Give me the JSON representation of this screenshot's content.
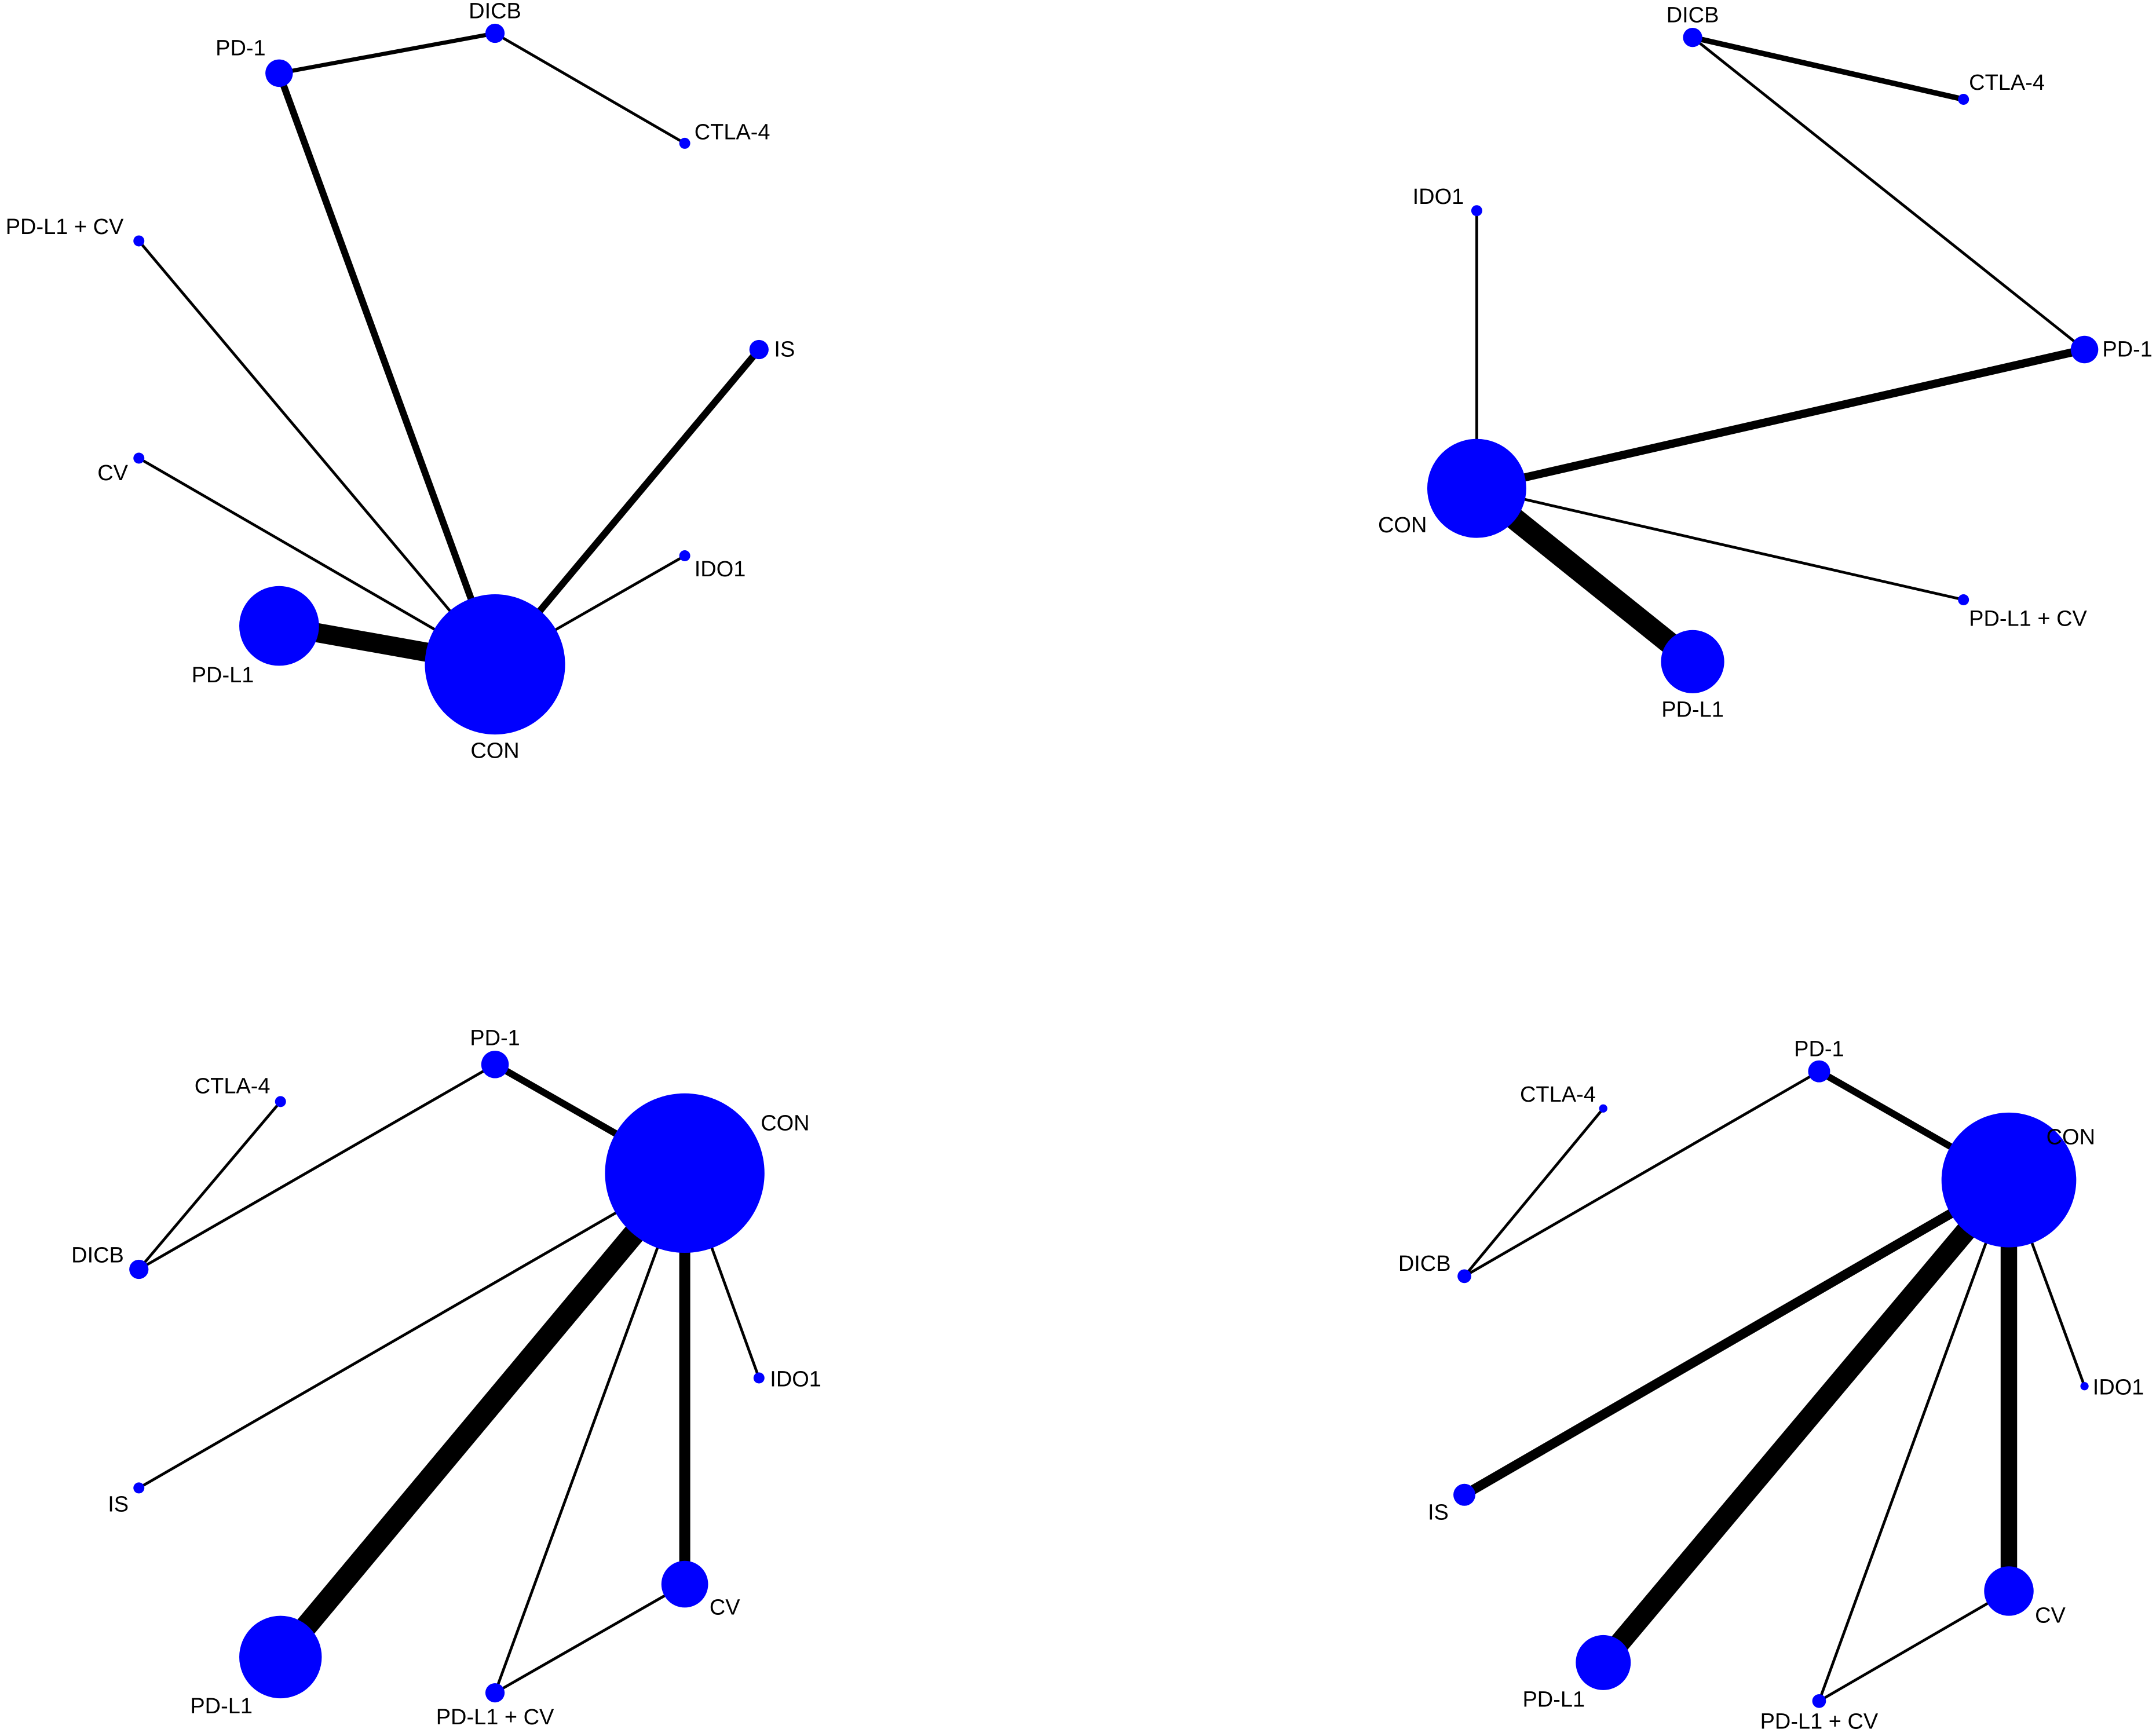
{
  "node_color": "#0000FF",
  "edge_color": "#000000",
  "networks": [
    {
      "nodes": [
        "PD-1",
        "DICB",
        "CTLA-4",
        "PD-L1 + CV",
        "IS",
        "CV",
        "IDO1",
        "PD-L1",
        "CON"
      ],
      "edges": [
        [
          "PD-1",
          "DICB"
        ],
        [
          "DICB",
          "CTLA-4"
        ],
        [
          "PD-1",
          "CON"
        ],
        [
          "PD-L1 + CV",
          "CON"
        ],
        [
          "IS",
          "CON"
        ],
        [
          "CV",
          "CON"
        ],
        [
          "IDO1",
          "CON"
        ],
        [
          "PD-L1",
          "CON"
        ]
      ]
    },
    {
      "nodes": [
        "DICB",
        "CTLA-4",
        "IDO1",
        "PD-1",
        "CON",
        "PD-L1 + CV",
        "PD-L1"
      ],
      "edges": [
        [
          "DICB",
          "CTLA-4"
        ],
        [
          "DICB",
          "PD-1"
        ],
        [
          "IDO1",
          "CON"
        ],
        [
          "PD-1",
          "CON"
        ],
        [
          "CON",
          "PD-L1 + CV"
        ],
        [
          "CON",
          "PD-L1"
        ]
      ]
    },
    {
      "nodes": [
        "PD-1",
        "CTLA-4",
        "CON",
        "DICB",
        "IDO1",
        "IS",
        "CV",
        "PD-L1",
        "PD-L1 + CV"
      ],
      "edges": [
        [
          "PD-1",
          "CON"
        ],
        [
          "CTLA-4",
          "DICB"
        ],
        [
          "DICB",
          "PD-1"
        ],
        [
          "CON",
          "IDO1"
        ],
        [
          "CON",
          "IS"
        ],
        [
          "CON",
          "CV"
        ],
        [
          "CON",
          "PD-L1"
        ],
        [
          "CON",
          "PD-L1 + CV"
        ],
        [
          "CV",
          "PD-L1 + CV"
        ]
      ]
    },
    {
      "nodes": [
        "PD-1",
        "CTLA-4",
        "CON",
        "DICB",
        "IDO1",
        "IS",
        "CV",
        "PD-L1",
        "PD-L1 + CV"
      ],
      "edges": [
        [
          "PD-1",
          "CON"
        ],
        [
          "CTLA-4",
          "DICB"
        ],
        [
          "DICB",
          "PD-1"
        ],
        [
          "CON",
          "IDO1"
        ],
        [
          "CON",
          "IS"
        ],
        [
          "CON",
          "CV"
        ],
        [
          "CON",
          "PD-L1"
        ],
        [
          "CON",
          "PD-L1 + CV"
        ],
        [
          "CV",
          "PD-L1 + CV"
        ]
      ]
    }
  ]
}
